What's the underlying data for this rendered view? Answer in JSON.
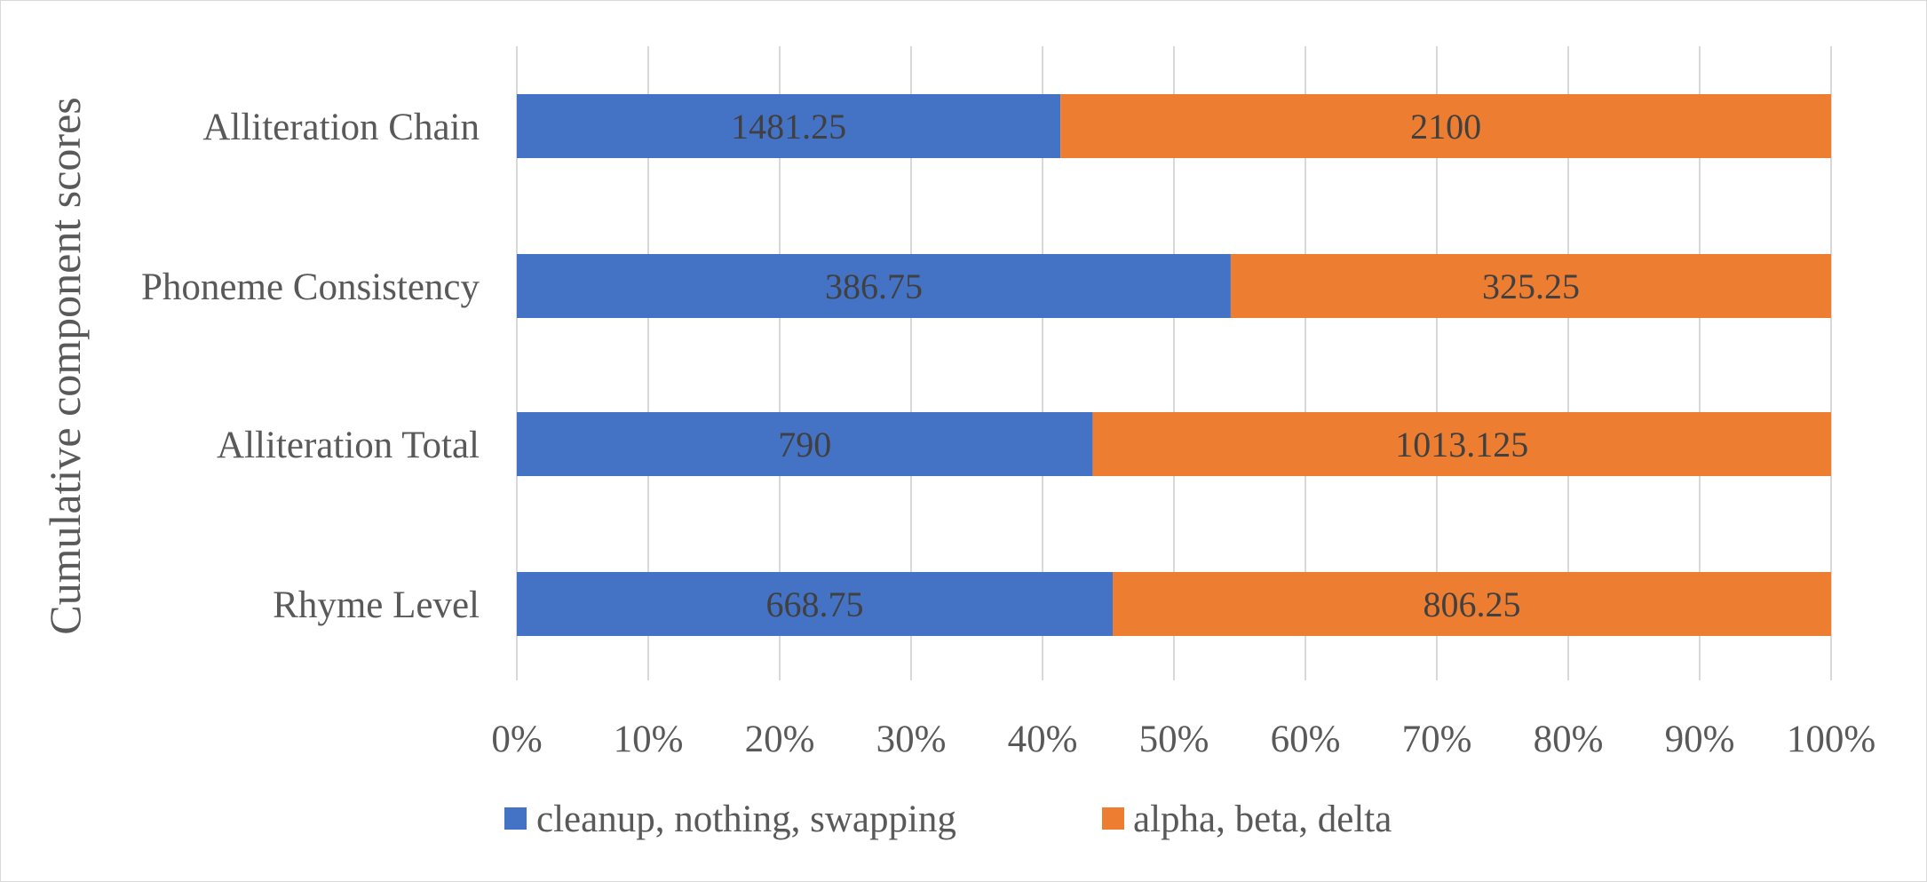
{
  "chart_data": {
    "type": "bar",
    "orientation": "horizontal",
    "stacking": "percent",
    "ylabel": "Cumulative component scores",
    "categories": [
      "Alliteration Chain",
      "Phoneme Consistency",
      "Alliteration Total",
      "Rhyme Level"
    ],
    "series": [
      {
        "name": "cleanup, nothing, swapping",
        "color": "#4472C4",
        "values": [
          1481.25,
          386.75,
          790,
          668.75
        ]
      },
      {
        "name": "alpha, beta, delta",
        "color": "#ED7D31",
        "values": [
          2100,
          325.25,
          1013.125,
          806.25
        ]
      }
    ],
    "x_ticks": [
      "0%",
      "10%",
      "20%",
      "30%",
      "40%",
      "50%",
      "60%",
      "70%",
      "80%",
      "90%",
      "100%"
    ],
    "xlim": [
      0,
      100
    ],
    "grid": true,
    "legend_position": "bottom"
  }
}
